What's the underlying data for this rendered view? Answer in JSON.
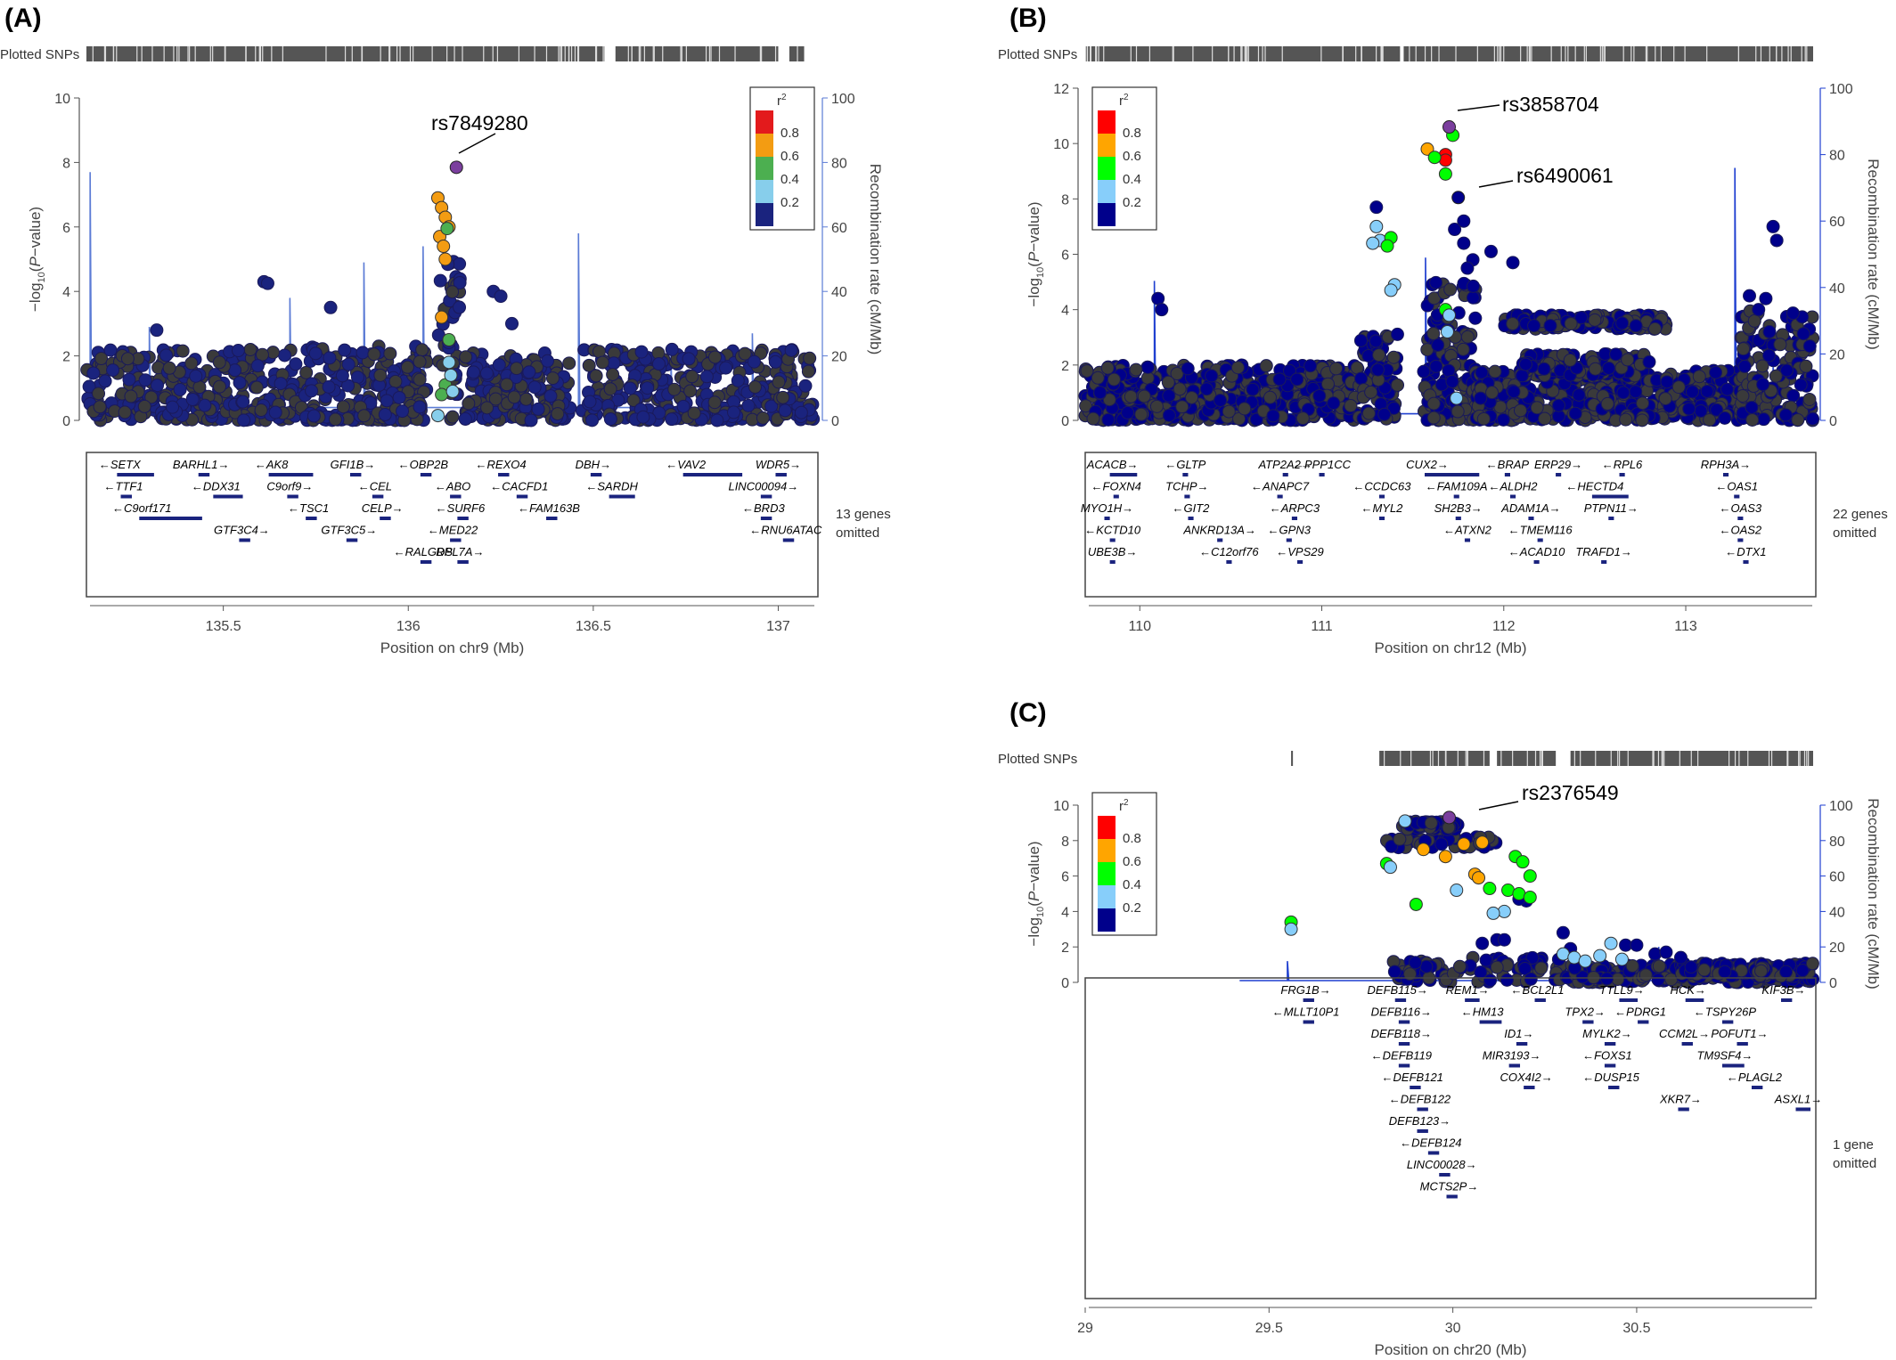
{
  "chart_data": [
    {
      "type": "scatter",
      "panel": "(A)",
      "plotted_snps_label": "Plotted SNPs",
      "xlabel": "Position on chr9 (Mb)",
      "ylabel": "-log10(P-value)",
      "y2label": "Recombination rate (cM/Mb)",
      "xlim": [
        135.13,
        137.1
      ],
      "ylim": [
        0,
        10
      ],
      "y2lim": [
        0,
        100
      ],
      "xticks": [
        135.5,
        136,
        136.5,
        137
      ],
      "yticks": [
        0,
        2,
        4,
        6,
        8,
        10
      ],
      "y2ticks": [
        0,
        20,
        40,
        60,
        80,
        100
      ],
      "legend": {
        "title": "r2",
        "breaks": [
          "0.8",
          "0.6",
          "0.4",
          "0.2"
        ],
        "colors": [
          "#e31a1c",
          "#f39c12",
          "#4caf50",
          "#87ceeb",
          "#1a237e"
        ],
        "placement": "top-right"
      },
      "lead_snp": {
        "name": "rs7849280",
        "x": 136.13,
        "y": 7.85
      },
      "genes_omitted": "13 genes omitted",
      "genes": [
        "SETX",
        "BARHL1",
        "AK8",
        "GFI1B",
        "OBP2B",
        "REXO4",
        "DBH",
        "VAV2",
        "WDR5",
        "TTF1",
        "DDX31",
        "C9orf9",
        "CEL",
        "ABO",
        "CACFD1",
        "SARDH",
        "LINC00094",
        "C9orf171",
        "TSC1",
        "CELP",
        "SURF6",
        "FAM163B",
        "BRD3",
        "GTF3C4",
        "GTF3C5",
        "MED22",
        "RNU6ATAC",
        "RALGDS",
        "RPL7A"
      ],
      "highlight_points": [
        {
          "x": 136.08,
          "y": 6.9,
          "r2": 0.7
        },
        {
          "x": 136.09,
          "y": 6.6,
          "r2": 0.7
        },
        {
          "x": 136.1,
          "y": 6.3,
          "r2": 0.7
        },
        {
          "x": 136.11,
          "y": 6.0,
          "r2": 0.7
        },
        {
          "x": 136.085,
          "y": 5.7,
          "r2": 0.7
        },
        {
          "x": 136.095,
          "y": 5.4,
          "r2": 0.7
        },
        {
          "x": 136.1,
          "y": 5.0,
          "r2": 0.7
        },
        {
          "x": 136.09,
          "y": 3.2,
          "r2": 0.7
        },
        {
          "x": 136.105,
          "y": 5.95,
          "r2": 0.5
        },
        {
          "x": 136.11,
          "y": 2.5,
          "r2": 0.5
        },
        {
          "x": 136.1,
          "y": 1.1,
          "r2": 0.5
        },
        {
          "x": 136.09,
          "y": 0.8,
          "r2": 0.5
        },
        {
          "x": 136.11,
          "y": 1.8,
          "r2": 0.3
        },
        {
          "x": 136.115,
          "y": 1.4,
          "r2": 0.3
        },
        {
          "x": 136.12,
          "y": 0.9,
          "r2": 0.3
        },
        {
          "x": 136.08,
          "y": 0.15,
          "r2": 0.3
        }
      ]
    },
    {
      "type": "scatter",
      "panel": "(B)",
      "plotted_snps_label": "Plotted SNPs",
      "xlabel": "Position on chr12 (Mb)",
      "ylabel": "-log10(P-value)",
      "y2label": "Recombination rate (cM/Mb)",
      "xlim": [
        109.7,
        113.7
      ],
      "ylim": [
        0,
        12
      ],
      "y2lim": [
        0,
        100
      ],
      "xticks": [
        110,
        111,
        112,
        113
      ],
      "yticks": [
        0,
        2,
        4,
        6,
        8,
        10,
        12
      ],
      "y2ticks": [
        0,
        20,
        40,
        60,
        80,
        100
      ],
      "legend": {
        "title": "r2",
        "breaks": [
          "0.8",
          "0.6",
          "0.4",
          "0.2"
        ],
        "colors": [
          "#ff0000",
          "#ffa500",
          "#00ff00",
          "#87cefa",
          "#00008b"
        ],
        "placement": "top-left"
      },
      "lead_snps": [
        {
          "name": "rs3858704",
          "x": 111.7,
          "y": 10.6
        },
        {
          "name": "rs6490061",
          "x": 111.75,
          "y": 8.05
        }
      ],
      "genes_omitted": "22 genes omitted",
      "genes": [
        "ACACB",
        "GLTP",
        "ATP2A2",
        "PPP1CC",
        "CUX2",
        "BRAP",
        "ERP29",
        "RPL6",
        "RPH3A",
        "FOXN4",
        "TCHP",
        "ANAPC7",
        "CCDC63",
        "FAM109A",
        "ALDH2",
        "HECTD4",
        "OAS1",
        "MYO1H",
        "GIT2",
        "ARPC3",
        "MYL2",
        "SH2B3",
        "ADAM1A",
        "PTPN11",
        "OAS3",
        "KCTD10",
        "ANKRD13A",
        "GPN3",
        "ATXN2",
        "TMEM116",
        "OAS2",
        "UBE3B",
        "C12orf76",
        "VPS29",
        "ACAD10",
        "TRAFD1",
        "DTX1"
      ],
      "highlight_points": [
        {
          "x": 111.58,
          "y": 9.8,
          "r2": 0.7
        },
        {
          "x": 111.68,
          "y": 9.6,
          "r2": 0.9
        },
        {
          "x": 111.68,
          "y": 9.4,
          "r2": 0.9
        },
        {
          "x": 111.72,
          "y": 10.3,
          "r2": 0.5
        },
        {
          "x": 111.62,
          "y": 9.5,
          "r2": 0.5
        },
        {
          "x": 111.68,
          "y": 8.9,
          "r2": 0.5
        },
        {
          "x": 111.3,
          "y": 7.0,
          "r2": 0.3
        },
        {
          "x": 111.32,
          "y": 6.5,
          "r2": 0.3
        },
        {
          "x": 111.28,
          "y": 6.4,
          "r2": 0.3
        },
        {
          "x": 111.38,
          "y": 6.6,
          "r2": 0.5
        },
        {
          "x": 111.36,
          "y": 6.3,
          "r2": 0.5
        },
        {
          "x": 111.4,
          "y": 4.9,
          "r2": 0.3
        },
        {
          "x": 111.38,
          "y": 4.7,
          "r2": 0.3
        },
        {
          "x": 111.68,
          "y": 4.0,
          "r2": 0.5
        },
        {
          "x": 111.7,
          "y": 3.8,
          "r2": 0.3
        },
        {
          "x": 111.69,
          "y": 3.2,
          "r2": 0.3
        },
        {
          "x": 111.74,
          "y": 0.8,
          "r2": 0.3
        }
      ]
    },
    {
      "type": "scatter",
      "panel": "(C)",
      "plotted_snps_label": "Plotted SNPs",
      "xlabel": "Position on chr20 (Mb)",
      "ylabel": "-log10(P-value)",
      "y2label": "Recombination rate (cM/Mb)",
      "xlim": [
        29.0,
        30.98
      ],
      "ylim": [
        0,
        10
      ],
      "y2lim": [
        0,
        100
      ],
      "xticks": [
        29,
        29.5,
        30,
        30.5
      ],
      "yticks": [
        0,
        2,
        4,
        6,
        8,
        10
      ],
      "y2ticks": [
        0,
        20,
        40,
        60,
        80,
        100
      ],
      "legend": {
        "title": "r2",
        "breaks": [
          "0.8",
          "0.6",
          "0.4",
          "0.2"
        ],
        "colors": [
          "#ff0000",
          "#ffa500",
          "#00ff00",
          "#87cefa",
          "#00008b"
        ],
        "placement": "top-left"
      },
      "lead_snp": {
        "name": "rs2376549",
        "x": 29.99,
        "y": 9.3
      },
      "genes_omitted": "1 gene omitted",
      "genes": [
        "FRG1B",
        "DEFB115",
        "REM1",
        "BCL2L1",
        "TTLL9",
        "HCK",
        "KIF3B",
        "MLLT10P1",
        "DEFB116",
        "HM13",
        "TPX2",
        "PDRG1",
        "TSPY26P",
        "DEFB118",
        "ID1",
        "MYLK2",
        "CCM2L",
        "POFUT1",
        "DEFB119",
        "MIR3193",
        "FOXS1",
        "TM9SF4",
        "DEFB121",
        "COX4I2",
        "DUSP15",
        "PLAGL2",
        "DEFB122",
        "XKR7",
        "ASXL1",
        "DEFB123",
        "DEFB124",
        "LINC00028",
        "MCTS2P"
      ],
      "highlight_points": [
        {
          "x": 29.56,
          "y": 3.4,
          "r2": 0.5
        },
        {
          "x": 29.56,
          "y": 3.0,
          "r2": 0.3
        },
        {
          "x": 29.82,
          "y": 6.7,
          "r2": 0.5
        },
        {
          "x": 29.83,
          "y": 6.5,
          "r2": 0.3
        },
        {
          "x": 29.87,
          "y": 9.1,
          "r2": 0.3
        },
        {
          "x": 29.9,
          "y": 4.4,
          "r2": 0.5
        },
        {
          "x": 29.92,
          "y": 7.5,
          "r2": 0.7
        },
        {
          "x": 29.98,
          "y": 7.1,
          "r2": 0.7
        },
        {
          "x": 30.03,
          "y": 7.8,
          "r2": 0.7
        },
        {
          "x": 30.06,
          "y": 6.1,
          "r2": 0.7
        },
        {
          "x": 30.07,
          "y": 5.9,
          "r2": 0.7
        },
        {
          "x": 30.08,
          "y": 7.9,
          "r2": 0.7
        },
        {
          "x": 30.01,
          "y": 5.2,
          "r2": 0.3
        },
        {
          "x": 30.1,
          "y": 5.3,
          "r2": 0.5
        },
        {
          "x": 30.15,
          "y": 5.2,
          "r2": 0.5
        },
        {
          "x": 30.17,
          "y": 7.1,
          "r2": 0.5
        },
        {
          "x": 30.19,
          "y": 6.8,
          "r2": 0.5
        },
        {
          "x": 30.21,
          "y": 6.0,
          "r2": 0.5
        },
        {
          "x": 30.18,
          "y": 5.0,
          "r2": 0.5
        },
        {
          "x": 30.21,
          "y": 4.8,
          "r2": 0.5
        },
        {
          "x": 30.14,
          "y": 4.0,
          "r2": 0.3
        },
        {
          "x": 30.11,
          "y": 3.9,
          "r2": 0.3
        },
        {
          "x": 30.3,
          "y": 1.6,
          "r2": 0.3
        },
        {
          "x": 30.33,
          "y": 1.4,
          "r2": 0.3
        },
        {
          "x": 30.36,
          "y": 1.2,
          "r2": 0.3
        },
        {
          "x": 30.4,
          "y": 1.5,
          "r2": 0.3
        },
        {
          "x": 30.43,
          "y": 2.2,
          "r2": 0.3
        },
        {
          "x": 30.46,
          "y": 1.3,
          "r2": 0.3
        }
      ]
    }
  ]
}
